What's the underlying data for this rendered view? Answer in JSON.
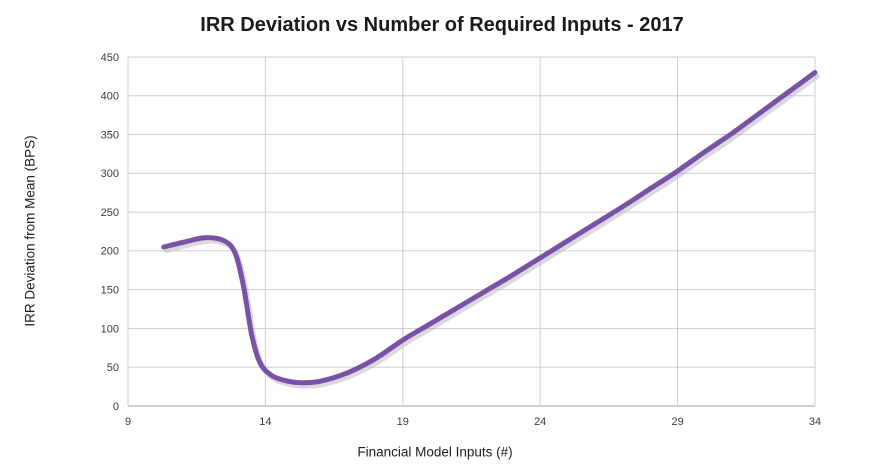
{
  "chart_data": {
    "type": "line",
    "title": "IRR Deviation vs Number of Required Inputs - 2017",
    "xlabel": "Financial Model Inputs (#)",
    "ylabel": "IRR Deviation from Mean (BPS)",
    "xlim": [
      9,
      34
    ],
    "ylim": [
      0,
      450
    ],
    "x_ticks": [
      9,
      14,
      19,
      24,
      29,
      34
    ],
    "y_ticks": [
      0,
      50,
      100,
      150,
      200,
      250,
      300,
      350,
      400,
      450
    ],
    "grid": true,
    "legend_position": "none",
    "line_color": "#7A52A5",
    "line_shadow_color": "#b9b3bd",
    "grid_color": "#CFCFCF",
    "axis_color": "#9F9F9F",
    "tick_text_color": "#3B3B3B",
    "series": [
      {
        "name": "IRR Deviation",
        "points": [
          [
            10.3,
            205
          ],
          [
            11.0,
            211
          ],
          [
            11.8,
            217
          ],
          [
            12.5,
            213
          ],
          [
            12.9,
            197
          ],
          [
            13.2,
            155
          ],
          [
            13.5,
            92
          ],
          [
            13.8,
            56
          ],
          [
            14.2,
            40
          ],
          [
            14.7,
            33
          ],
          [
            15.3,
            30
          ],
          [
            16.0,
            32
          ],
          [
            17.0,
            43
          ],
          [
            18.0,
            61
          ],
          [
            19.0,
            85
          ],
          [
            20.0,
            106
          ],
          [
            21.0,
            127
          ],
          [
            22.0,
            148
          ],
          [
            23.0,
            169
          ],
          [
            24.0,
            191
          ],
          [
            25.0,
            213
          ],
          [
            26.0,
            235
          ],
          [
            27.0,
            257
          ],
          [
            28.0,
            280
          ],
          [
            29.0,
            303
          ],
          [
            30.0,
            328
          ],
          [
            31.0,
            352
          ],
          [
            32.0,
            378
          ],
          [
            33.0,
            404
          ],
          [
            34.0,
            430
          ]
        ]
      }
    ]
  }
}
